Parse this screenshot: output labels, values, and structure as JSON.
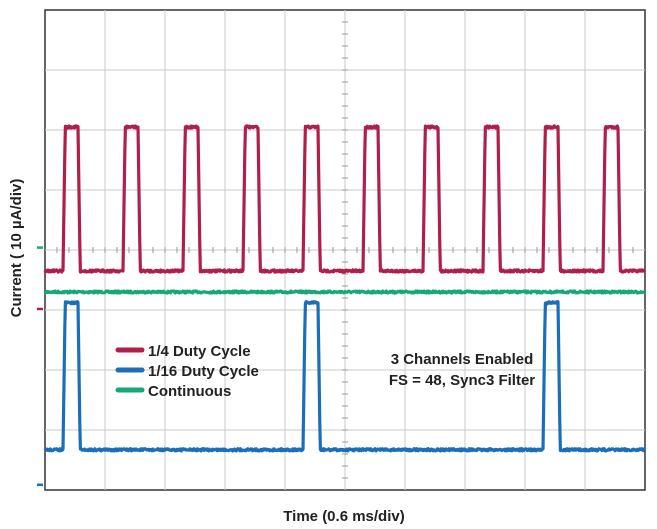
{
  "chart_data": {
    "type": "line",
    "title": "",
    "xlabel": "Time (0.6 ms/div)",
    "ylabel": "Current ( 10 µA/div)",
    "grid": true,
    "x_divisions": 10,
    "y_divisions": 8,
    "xlim": [
      0,
      6.0
    ],
    "x_unit": "ms",
    "y_unit": "µA",
    "legend_position": "middle-left",
    "colors": {
      "quarter": "#b01f4c",
      "sixteenth": "#1a6fb8",
      "continuous": "#16a878",
      "grid": "#c8c8c8",
      "axis": "#333333"
    },
    "series": [
      {
        "name": "1/4 Duty Cycle",
        "color": "#b01f4c",
        "low": 0,
        "high": 24,
        "period_ms": 0.6,
        "pulse_width_ms": 0.15,
        "first_rise_ms": 0.18,
        "num_pulses": 10
      },
      {
        "name": "1/16 Duty Cycle",
        "color": "#1a6fb8",
        "low": 0,
        "high": 24.5,
        "period_ms": 2.4,
        "pulse_width_ms": 0.15,
        "first_rise_ms": 0.18,
        "num_pulses": 3
      },
      {
        "name": "Continuous",
        "color": "#16a878",
        "value": 33
      }
    ],
    "channel_markers": [
      {
        "channel": 1,
        "color": "#b01f4c"
      },
      {
        "channel": 2,
        "color": "#1a6fb8"
      },
      {
        "channel": 3,
        "color": "#16a878"
      }
    ],
    "annotations": [
      "3 Channels Enabled",
      "FS = 48, Sync3 Filter"
    ]
  }
}
